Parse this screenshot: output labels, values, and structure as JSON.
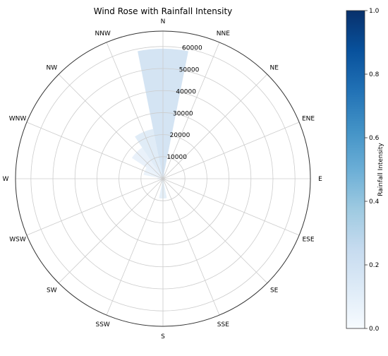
{
  "chart_data": {
    "type": "wind-rose",
    "title": "Wind Rose with Rainfall Intensity",
    "directions": [
      "N",
      "NNE",
      "NE",
      "ENE",
      "E",
      "ESE",
      "SE",
      "SSE",
      "S",
      "SSW",
      "SW",
      "WSW",
      "W",
      "WNW",
      "NW",
      "NNW"
    ],
    "radial_ticks": [
      10000,
      20000,
      30000,
      40000,
      50000,
      60000
    ],
    "radial_tick_labels": [
      "10000",
      "20000",
      "30000",
      "40000",
      "50000",
      "60000"
    ],
    "rmax": 67000,
    "grid": true,
    "bars": [
      {
        "direction": "N",
        "value": 59000,
        "intensity": 0.22
      },
      {
        "direction": "NNE",
        "value": 2500,
        "intensity": 0.05
      },
      {
        "direction": "NE",
        "value": 500,
        "intensity": 0.02
      },
      {
        "direction": "ENE",
        "value": 300,
        "intensity": 0.02
      },
      {
        "direction": "E",
        "value": 200,
        "intensity": 0.02
      },
      {
        "direction": "ESE",
        "value": 200,
        "intensity": 0.02
      },
      {
        "direction": "SE",
        "value": 400,
        "intensity": 0.03
      },
      {
        "direction": "SSE",
        "value": 1500,
        "intensity": 0.05
      },
      {
        "direction": "S",
        "value": 9000,
        "intensity": 0.12
      },
      {
        "direction": "SSW",
        "value": 2000,
        "intensity": 0.05
      },
      {
        "direction": "SW",
        "value": 1500,
        "intensity": 0.04
      },
      {
        "direction": "WSW",
        "value": 1500,
        "intensity": 0.04
      },
      {
        "direction": "W",
        "value": 2500,
        "intensity": 0.05
      },
      {
        "direction": "WNW",
        "value": 9000,
        "intensity": 0.08
      },
      {
        "direction": "NW",
        "value": 17000,
        "intensity": 0.09
      },
      {
        "direction": "NNW",
        "value": 23000,
        "intensity": 0.14
      }
    ],
    "colorbar": {
      "label": "Rainfall Intensity",
      "ticks": [
        "0.0",
        "0.2",
        "0.4",
        "0.6",
        "0.8",
        "1.0"
      ],
      "min": 0,
      "max": 1,
      "colormap": "Blues",
      "colormap_stops": [
        "#f7fbff",
        "#deebf7",
        "#c6dbef",
        "#9ecae1",
        "#6baed6",
        "#4292c6",
        "#2171b5",
        "#08519c",
        "#08306b"
      ]
    }
  }
}
